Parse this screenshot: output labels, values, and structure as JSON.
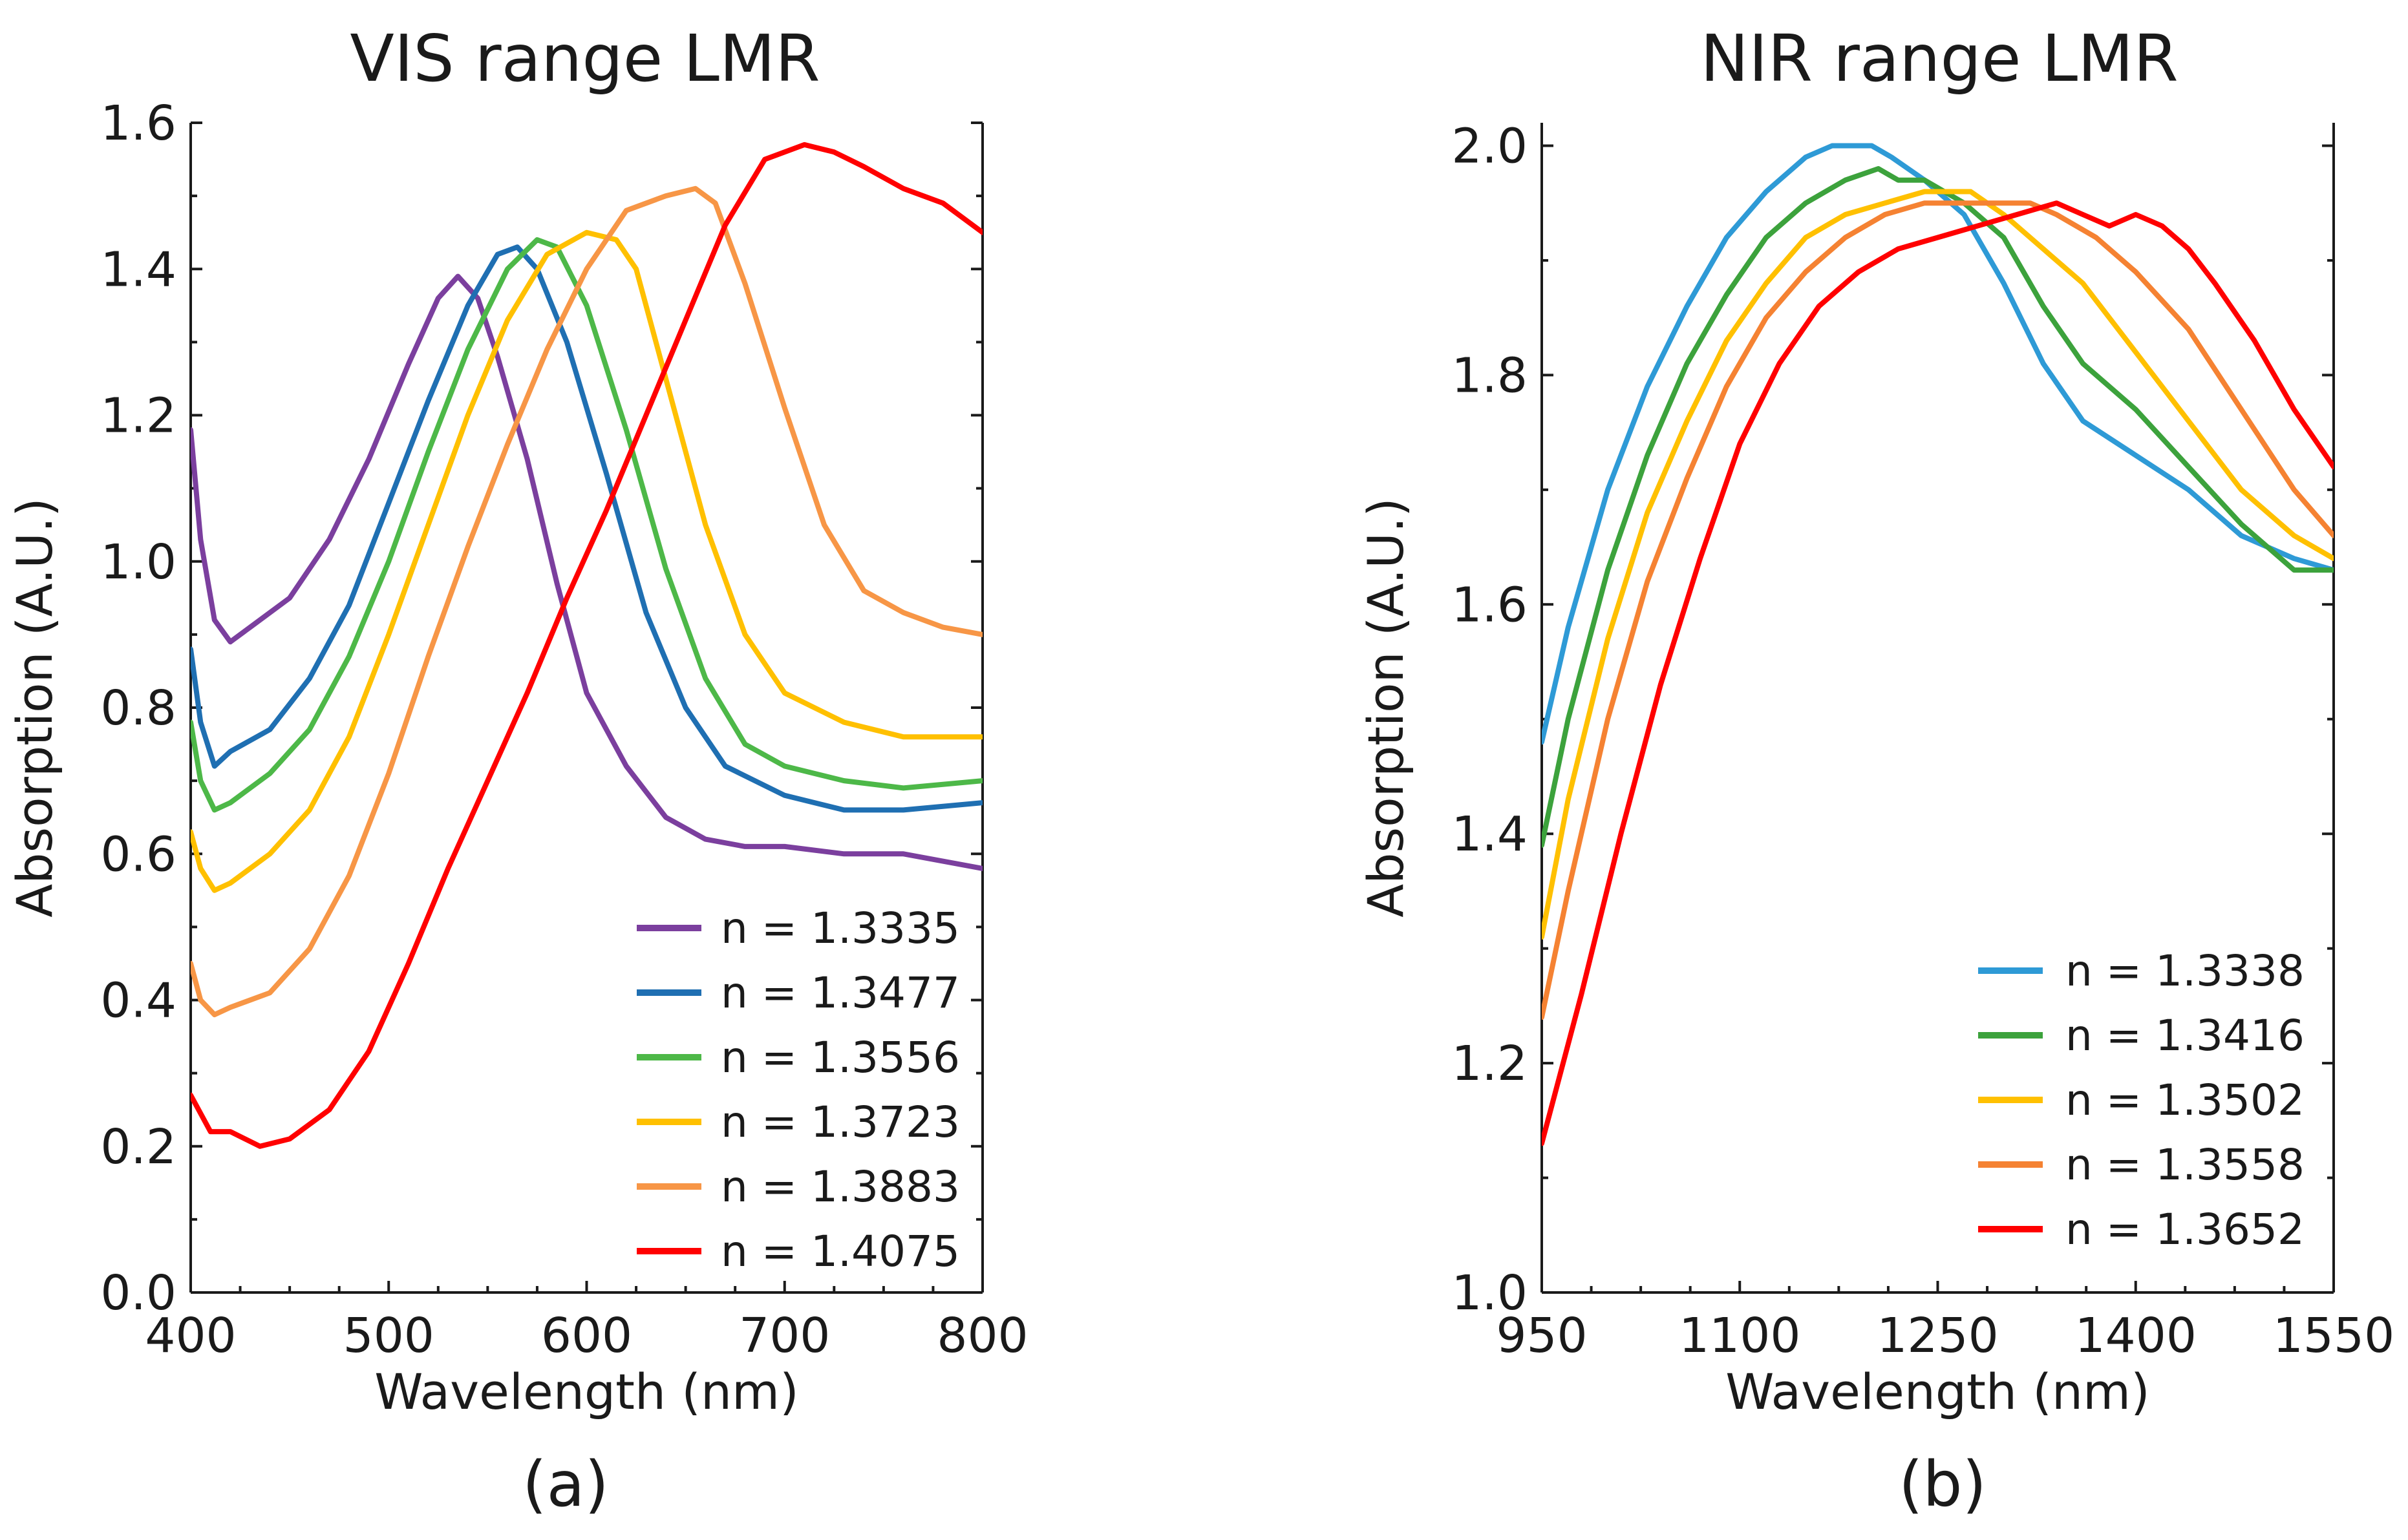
{
  "chart_data": [
    {
      "type": "line",
      "title": "VIS range LMR",
      "xlabel": "Wavelength (nm)",
      "ylabel": "Absorption (A.U.)",
      "panel_label": "(a)",
      "xlim": [
        400,
        800
      ],
      "ylim": [
        0.0,
        1.6
      ],
      "xticks": [
        400,
        500,
        600,
        700,
        800
      ],
      "xtick_labels": [
        "400",
        "500",
        "600",
        "700",
        "800"
      ],
      "yticks": [
        0.0,
        0.2,
        0.4,
        0.6,
        0.8,
        1.0,
        1.2,
        1.4,
        1.6
      ],
      "ytick_labels": [
        "0.0",
        "0.2",
        "0.4",
        "0.6",
        "0.8",
        "1.0",
        "1.2",
        "1.4",
        "1.6"
      ],
      "legend_position": "bottom-right",
      "series": [
        {
          "name": "n = 1.3335",
          "color": "#7B3F9E",
          "x": [
            400,
            405,
            412,
            420,
            430,
            450,
            470,
            490,
            510,
            525,
            535,
            545,
            555,
            570,
            585,
            600,
            620,
            640,
            660,
            680,
            700,
            730,
            760,
            800
          ],
          "y": [
            1.18,
            1.03,
            0.92,
            0.89,
            0.91,
            0.95,
            1.03,
            1.14,
            1.27,
            1.36,
            1.39,
            1.36,
            1.28,
            1.14,
            0.97,
            0.82,
            0.72,
            0.65,
            0.62,
            0.61,
            0.61,
            0.6,
            0.6,
            0.58
          ]
        },
        {
          "name": "n = 1.3477",
          "color": "#1F6FB2",
          "x": [
            400,
            405,
            412,
            420,
            440,
            460,
            480,
            500,
            520,
            540,
            555,
            565,
            575,
            590,
            610,
            630,
            650,
            670,
            700,
            730,
            760,
            800
          ],
          "y": [
            0.88,
            0.78,
            0.72,
            0.74,
            0.77,
            0.84,
            0.94,
            1.08,
            1.22,
            1.35,
            1.42,
            1.43,
            1.4,
            1.3,
            1.12,
            0.93,
            0.8,
            0.72,
            0.68,
            0.66,
            0.66,
            0.67
          ]
        },
        {
          "name": "n = 1.3556",
          "color": "#4DB848",
          "x": [
            400,
            405,
            412,
            420,
            440,
            460,
            480,
            500,
            520,
            540,
            560,
            575,
            585,
            600,
            620,
            640,
            660,
            680,
            700,
            730,
            760,
            800
          ],
          "y": [
            0.78,
            0.7,
            0.66,
            0.67,
            0.71,
            0.77,
            0.87,
            1.0,
            1.15,
            1.29,
            1.4,
            1.44,
            1.43,
            1.35,
            1.18,
            0.99,
            0.84,
            0.75,
            0.72,
            0.7,
            0.69,
            0.7
          ]
        },
        {
          "name": "n = 1.3723",
          "color": "#FFC000",
          "x": [
            400,
            405,
            412,
            420,
            440,
            460,
            480,
            500,
            520,
            540,
            560,
            580,
            600,
            615,
            625,
            640,
            660,
            680,
            700,
            730,
            760,
            800
          ],
          "y": [
            0.63,
            0.58,
            0.55,
            0.56,
            0.6,
            0.66,
            0.76,
            0.9,
            1.05,
            1.2,
            1.33,
            1.42,
            1.45,
            1.44,
            1.4,
            1.25,
            1.05,
            0.9,
            0.82,
            0.78,
            0.76,
            0.76
          ]
        },
        {
          "name": "n = 1.3883",
          "color": "#F79646",
          "x": [
            400,
            405,
            412,
            420,
            440,
            460,
            480,
            500,
            520,
            540,
            560,
            580,
            600,
            620,
            640,
            655,
            665,
            680,
            700,
            720,
            740,
            760,
            780,
            800
          ],
          "y": [
            0.45,
            0.4,
            0.38,
            0.39,
            0.41,
            0.47,
            0.57,
            0.71,
            0.87,
            1.02,
            1.16,
            1.29,
            1.4,
            1.48,
            1.5,
            1.51,
            1.49,
            1.38,
            1.21,
            1.05,
            0.96,
            0.93,
            0.91,
            0.9
          ]
        },
        {
          "name": "n = 1.4075",
          "color": "#FF0000",
          "x": [
            400,
            410,
            420,
            435,
            450,
            470,
            490,
            510,
            530,
            550,
            570,
            590,
            610,
            630,
            650,
            670,
            690,
            710,
            725,
            740,
            760,
            780,
            800
          ],
          "y": [
            0.27,
            0.22,
            0.22,
            0.2,
            0.21,
            0.25,
            0.33,
            0.45,
            0.58,
            0.7,
            0.82,
            0.95,
            1.07,
            1.2,
            1.33,
            1.46,
            1.55,
            1.57,
            1.56,
            1.54,
            1.51,
            1.49,
            1.45
          ]
        }
      ]
    },
    {
      "type": "line",
      "title": "NIR range LMR",
      "xlabel": "Wavelength (nm)",
      "ylabel": "Absorption (A.U.)",
      "panel_label": "(b)",
      "xlim": [
        950,
        1550
      ],
      "ylim": [
        1.0,
        2.02
      ],
      "xticks": [
        950,
        1100,
        1250,
        1400,
        1550
      ],
      "xtick_labels": [
        "950",
        "1100",
        "1250",
        "1400",
        "1550"
      ],
      "yticks": [
        1.0,
        1.2,
        1.4,
        1.6,
        1.8,
        2.0
      ],
      "ytick_labels": [
        "1.0",
        "1.2",
        "1.4",
        "1.6",
        "1.8",
        "2.0"
      ],
      "legend_position": "bottom-right",
      "series": [
        {
          "name": "n = 1.3338",
          "color": "#2E9AD6",
          "x": [
            950,
            970,
            1000,
            1030,
            1060,
            1090,
            1120,
            1150,
            1170,
            1190,
            1200,
            1215,
            1240,
            1270,
            1300,
            1330,
            1360,
            1400,
            1440,
            1480,
            1520,
            1550
          ],
          "y": [
            1.48,
            1.58,
            1.7,
            1.79,
            1.86,
            1.92,
            1.96,
            1.99,
            2.0,
            2.0,
            2.0,
            1.99,
            1.97,
            1.94,
            1.88,
            1.81,
            1.76,
            1.73,
            1.7,
            1.66,
            1.64,
            1.63
          ]
        },
        {
          "name": "n = 1.3416",
          "color": "#3CA23C",
          "x": [
            950,
            970,
            1000,
            1030,
            1060,
            1090,
            1120,
            1150,
            1180,
            1205,
            1220,
            1240,
            1270,
            1300,
            1330,
            1360,
            1400,
            1440,
            1480,
            1520,
            1550
          ],
          "y": [
            1.39,
            1.5,
            1.63,
            1.73,
            1.81,
            1.87,
            1.92,
            1.95,
            1.97,
            1.98,
            1.97,
            1.97,
            1.95,
            1.92,
            1.86,
            1.81,
            1.77,
            1.72,
            1.67,
            1.63,
            1.63
          ]
        },
        {
          "name": "n = 1.3502",
          "color": "#FFC000",
          "x": [
            950,
            970,
            1000,
            1030,
            1060,
            1090,
            1120,
            1150,
            1180,
            1210,
            1240,
            1260,
            1275,
            1300,
            1330,
            1360,
            1400,
            1440,
            1480,
            1520,
            1550
          ],
          "y": [
            1.31,
            1.43,
            1.57,
            1.68,
            1.76,
            1.83,
            1.88,
            1.92,
            1.94,
            1.95,
            1.96,
            1.96,
            1.96,
            1.94,
            1.91,
            1.88,
            1.82,
            1.76,
            1.7,
            1.66,
            1.64
          ]
        },
        {
          "name": "n = 1.3558",
          "color": "#F58232",
          "x": [
            950,
            970,
            1000,
            1030,
            1060,
            1090,
            1120,
            1150,
            1180,
            1210,
            1240,
            1270,
            1300,
            1320,
            1340,
            1370,
            1400,
            1440,
            1480,
            1520,
            1550
          ],
          "y": [
            1.24,
            1.35,
            1.5,
            1.62,
            1.71,
            1.79,
            1.85,
            1.89,
            1.92,
            1.94,
            1.95,
            1.95,
            1.95,
            1.95,
            1.94,
            1.92,
            1.89,
            1.84,
            1.77,
            1.7,
            1.66
          ]
        },
        {
          "name": "n = 1.3652",
          "color": "#FF0000",
          "x": [
            950,
            980,
            1010,
            1040,
            1070,
            1100,
            1130,
            1160,
            1190,
            1220,
            1250,
            1280,
            1310,
            1340,
            1360,
            1380,
            1400,
            1420,
            1440,
            1460,
            1490,
            1520,
            1550
          ],
          "y": [
            1.13,
            1.26,
            1.4,
            1.53,
            1.64,
            1.74,
            1.81,
            1.86,
            1.89,
            1.91,
            1.92,
            1.93,
            1.94,
            1.95,
            1.94,
            1.93,
            1.94,
            1.93,
            1.91,
            1.88,
            1.83,
            1.77,
            1.72
          ]
        }
      ]
    }
  ]
}
